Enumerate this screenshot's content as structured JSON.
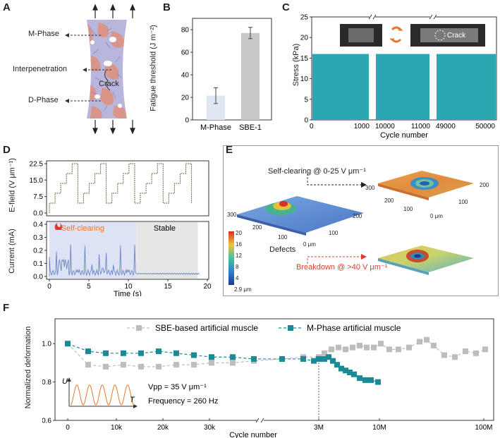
{
  "panels": {
    "A": {
      "letter": "A",
      "labels": [
        "M-Phase",
        "Interpenetration",
        "D-Phase"
      ],
      "crack": "Crack"
    },
    "B": {
      "letter": "B",
      "ylabel": "Fatigue threshold (J m⁻²)",
      "yticks": [
        "0",
        "20",
        "40",
        "60",
        "80"
      ],
      "categories": [
        "M-Phase",
        "SBE-1"
      ]
    },
    "C": {
      "letter": "C",
      "ylabel": "Stress (kPa)",
      "xlabel": "Cycle number",
      "yticks": [
        "0",
        "5",
        "10",
        "15",
        "20",
        "25"
      ],
      "xticks": [
        "0",
        "1000",
        "10000",
        "11000",
        "49000",
        "50000"
      ],
      "inset_label": "Crack"
    },
    "D": {
      "letter": "D",
      "top_ylabel": "E-field (V μm⁻¹)",
      "top_yticks": [
        "0.0",
        "7.5",
        "15.0",
        "22.5"
      ],
      "bottom_ylabel": "Current (mA)",
      "bottom_yticks": [
        "0.0",
        "0.1",
        "0.2",
        "0.3",
        "0.4"
      ],
      "xlabel": "Time (s)",
      "xticks": [
        "0",
        "5",
        "10",
        "15",
        "20"
      ],
      "self_clearing": "Self-clearing",
      "stable": "Stable"
    },
    "E": {
      "letter": "E",
      "self_clearing": "Self-clearing @ 0-25 V μm⁻¹",
      "breakdown": "Breakdown @ >40 V μm⁻¹",
      "defects": "Defects",
      "colorbar_ticks": [
        "20",
        "16",
        "12",
        "8",
        "4"
      ],
      "colorbar_min": "2.9 μm",
      "axis_ticks_main": [
        "300",
        "200",
        "100",
        "0 μm",
        "100",
        "200"
      ],
      "axis_ticks_inset": [
        "300",
        "200",
        "100",
        "0 μm",
        "100",
        "200"
      ]
    },
    "F": {
      "letter": "F",
      "ylabel": "Normalized deformation",
      "xlabel": "Cycle number",
      "yticks": [
        "0.6",
        "0.8",
        "1.0"
      ],
      "xticks": [
        "0",
        "10k",
        "20k",
        "30k",
        "3M",
        "10M",
        "100M"
      ],
      "legend": [
        "SBE-based artificial muscle",
        "M-Phase artificial muscle"
      ],
      "vpp": "Vpp = 35 V μm⁻¹",
      "frequency": "Frequency = 260 Hz",
      "wave_u": "U",
      "wave_t": "T"
    }
  },
  "colors": {
    "teal": "#2aa7b0",
    "teal_dark": "#1a8a96",
    "grey_marker": "#bdbdbd",
    "orange": "#e8762b",
    "red": "#e03a2f",
    "bar_blue": "#dfe6f4",
    "bar_grey": "#c8c8c8"
  },
  "chart_data": [
    {
      "panel": "B",
      "type": "bar",
      "categories": [
        "M-Phase",
        "SBE-1"
      ],
      "values": [
        21.5,
        77
      ],
      "errors": [
        7,
        5
      ],
      "ylabel": "Fatigue threshold (J m⁻²)",
      "ylim": [
        0,
        90
      ]
    },
    {
      "panel": "C",
      "type": "area",
      "segments": [
        [
          0,
          1000
        ],
        [
          10000,
          11000
        ],
        [
          49000,
          50000
        ]
      ],
      "values": [
        16,
        16,
        16
      ],
      "ylabel": "Stress (kPa)",
      "xlabel": "Cycle number",
      "ylim": [
        0,
        25
      ]
    },
    {
      "panel": "D-top",
      "type": "line",
      "steps": [
        0,
        4.5,
        9,
        13.5,
        18,
        22.5
      ],
      "ylabel": "E-field (V μm⁻¹)",
      "xlabel": "Time (s)",
      "xlim": [
        0,
        20
      ],
      "ylim": [
        0,
        22.5
      ]
    },
    {
      "panel": "D-bottom",
      "type": "line",
      "regions": [
        {
          "name": "Self-clearing",
          "x": [
            0,
            11
          ]
        },
        {
          "name": "Stable",
          "x": [
            11,
            19
          ]
        }
      ],
      "ylabel": "Current (mA)",
      "xlabel": "Time (s)",
      "xlim": [
        0,
        20
      ],
      "ylim": [
        0,
        0.4
      ]
    },
    {
      "panel": "F",
      "type": "scatter",
      "ylabel": "Normalized deformation",
      "xlabel": "Cycle number",
      "ylim": [
        0.6,
        1.1
      ],
      "series": [
        {
          "name": "SBE-based artificial muscle",
          "values": [
            1.0,
            0.89,
            0.88,
            0.89,
            0.88,
            0.88,
            0.89,
            0.89,
            0.9,
            0.9,
            0.91,
            0.92,
            0.93,
            0.93,
            0.95,
            0.97,
            0.98,
            0.97,
            0.98,
            0.99,
            0.98,
            0.98,
            1.0,
            0.97,
            0.97,
            0.98,
            1.01,
            1.02,
            0.99,
            0.94,
            0.93,
            0.96,
            0.95,
            0.97
          ]
        },
        {
          "name": "M-Phase artificial muscle",
          "values": [
            1.0,
            0.96,
            0.95,
            0.95,
            0.95,
            0.96,
            0.95,
            0.94,
            0.93,
            0.93,
            0.92,
            0.92,
            0.92,
            0.91,
            0.92,
            0.92,
            0.93,
            0.91,
            0.89,
            0.87,
            0.86,
            0.85,
            0.84,
            0.82,
            0.81,
            0.81,
            0.8
          ]
        }
      ]
    }
  ]
}
